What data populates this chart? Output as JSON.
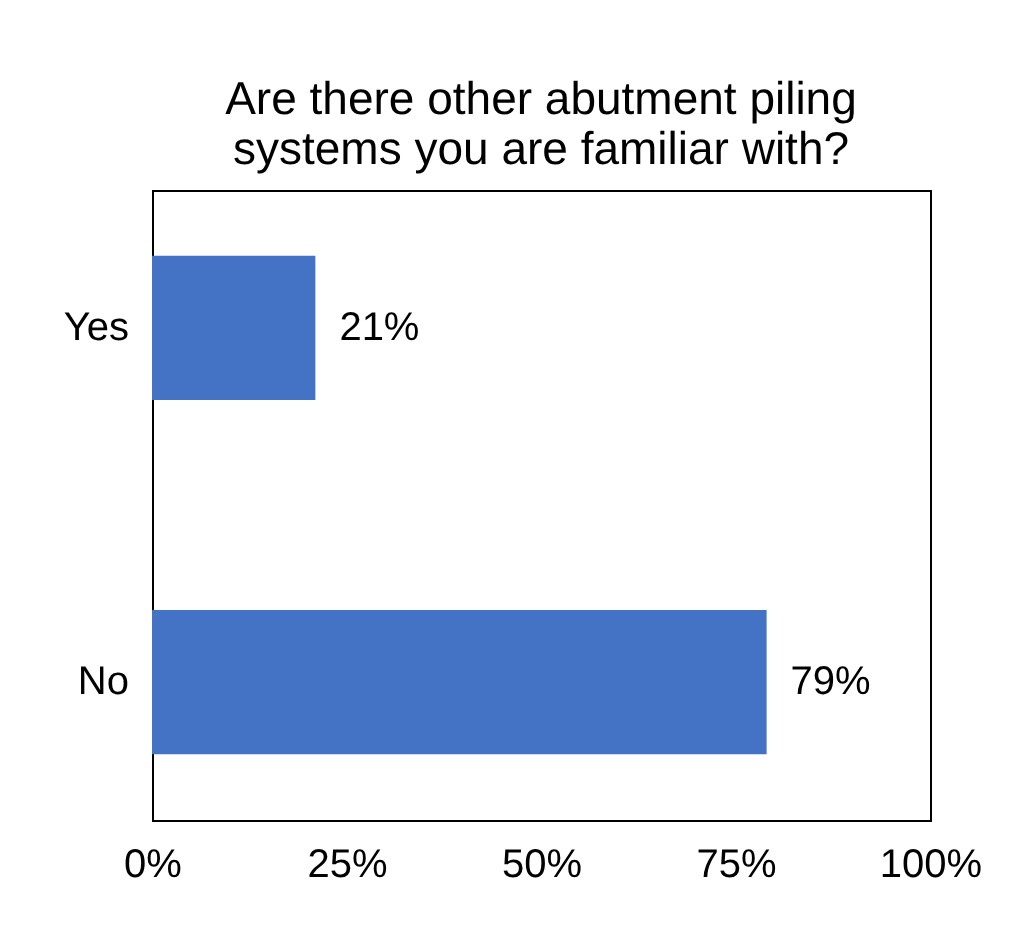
{
  "chart_data": {
    "type": "bar",
    "orientation": "horizontal",
    "title": "Are there other abutment piling systems you are familiar with?",
    "categories": [
      "Yes",
      "No"
    ],
    "values": [
      21,
      79
    ],
    "value_labels": [
      "21%",
      "79%"
    ],
    "color": "#4472c4",
    "xlim": [
      0,
      100
    ],
    "xticks": [
      {
        "value": 0,
        "label": "0%"
      },
      {
        "value": 25,
        "label": "25%"
      },
      {
        "value": 50,
        "label": "50%"
      },
      {
        "value": 75,
        "label": "75%"
      },
      {
        "value": 100,
        "label": "100%"
      }
    ],
    "grid": false
  }
}
